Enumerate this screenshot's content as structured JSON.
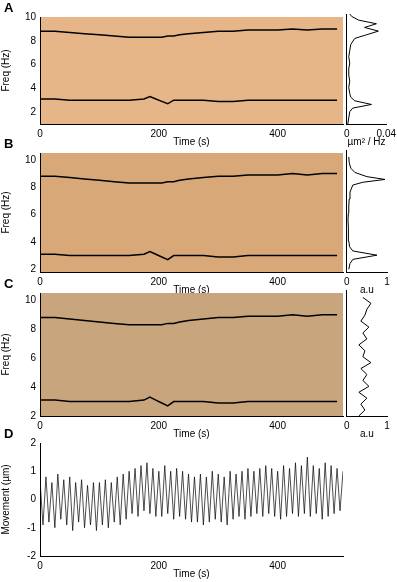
{
  "chart_data": [
    {
      "type": "line",
      "title": "A",
      "xlabel": "Time (s)",
      "ylabel": "Freq (Hz)",
      "x": [
        0,
        25,
        50,
        75,
        100,
        125,
        150,
        175,
        185,
        195,
        205,
        215,
        225,
        235,
        250,
        275,
        300,
        325,
        350,
        375,
        400,
        425,
        450,
        475,
        500
      ],
      "series": [
        {
          "color": "#000000",
          "values": [
            8.8,
            8.8,
            8.7,
            8.6,
            8.5,
            8.4,
            8.3,
            8.3,
            8.3,
            8.3,
            8.3,
            8.4,
            8.4,
            8.5,
            8.6,
            8.7,
            8.8,
            8.8,
            8.9,
            8.9,
            8.9,
            9.0,
            8.9,
            9.0,
            9.0
          ]
        },
        {
          "color": "#000000",
          "values": [
            3.1,
            3.1,
            3.0,
            3.0,
            3.0,
            3.0,
            3.0,
            3.1,
            3.3,
            3.1,
            2.9,
            2.7,
            3.0,
            3.0,
            3.0,
            3.0,
            2.9,
            2.9,
            3.0,
            3.0,
            3.0,
            3.0,
            3.0,
            3.0,
            3.0
          ]
        }
      ],
      "xlim": [
        0,
        510
      ],
      "xticks": [
        0,
        200,
        400
      ],
      "ylim": [
        1,
        10
      ],
      "yticks": [
        2,
        4,
        6,
        8,
        10
      ]
    },
    {
      "type": "line",
      "orientation": "horizontal",
      "xlabel": "µm² / Hz",
      "color": "#000000",
      "tick_labels": "x",
      "y": [
        1,
        1.5,
        2,
        2.3,
        2.6,
        2.9,
        3.2,
        3.5,
        4,
        4.5,
        5,
        5.5,
        6,
        6.5,
        7,
        7.5,
        8,
        8.3,
        8.6,
        8.9,
        9.2,
        9.5,
        9.8,
        10
      ],
      "values": [
        0.001,
        0.002,
        0.003,
        0.006,
        0.025,
        0.008,
        0.004,
        0.003,
        0.002,
        0.003,
        0.002,
        0.002,
        0.003,
        0.002,
        0.003,
        0.004,
        0.008,
        0.02,
        0.032,
        0.018,
        0.03,
        0.012,
        0.005,
        0.003
      ],
      "xlim": [
        0,
        0.04
      ],
      "xticks": [
        0,
        0.04
      ],
      "ylim": [
        1,
        10
      ]
    },
    {
      "type": "line",
      "title": "B",
      "xlabel": "Time (s)",
      "ylabel": "Freq (Hz)",
      "x": [
        0,
        25,
        50,
        75,
        100,
        125,
        150,
        175,
        185,
        195,
        205,
        215,
        225,
        235,
        250,
        275,
        300,
        325,
        350,
        375,
        400,
        425,
        450,
        475,
        500
      ],
      "series": [
        {
          "color": "#000000",
          "values": [
            8.8,
            8.8,
            8.7,
            8.6,
            8.5,
            8.4,
            8.3,
            8.3,
            8.3,
            8.3,
            8.3,
            8.4,
            8.4,
            8.5,
            8.6,
            8.7,
            8.8,
            8.8,
            8.9,
            8.9,
            8.9,
            9.0,
            8.9,
            9.0,
            9.0
          ]
        },
        {
          "color": "#000000",
          "values": [
            3.1,
            3.1,
            3.0,
            3.0,
            3.0,
            3.0,
            3.0,
            3.1,
            3.3,
            3.1,
            2.9,
            2.7,
            3.0,
            3.0,
            3.0,
            3.0,
            2.9,
            2.9,
            3.0,
            3.0,
            3.0,
            3.0,
            3.0,
            3.0,
            3.0
          ]
        }
      ],
      "xlim": [
        0,
        510
      ],
      "xticks": [
        0,
        200,
        400
      ],
      "ylim": [
        1.8,
        10.5
      ],
      "yticks": [
        2,
        4,
        6,
        8,
        10
      ]
    },
    {
      "type": "line",
      "orientation": "horizontal",
      "xlabel": "a.u",
      "color": "#000000",
      "tick_labels": "x",
      "y": [
        2,
        2.4,
        2.7,
        3.0,
        3.3,
        3.6,
        4,
        4.5,
        5,
        5.5,
        6,
        6.5,
        7,
        7.5,
        8,
        8.2,
        8.4,
        8.6,
        8.9,
        9.2,
        9.6,
        10
      ],
      "values": [
        0.05,
        0.08,
        0.15,
        0.75,
        0.15,
        0.07,
        0.05,
        0.04,
        0.04,
        0.03,
        0.04,
        0.05,
        0.06,
        0.08,
        0.15,
        0.4,
        0.95,
        0.5,
        0.2,
        0.1,
        0.06,
        0.05
      ],
      "xlim": [
        0,
        1
      ],
      "xticks": [
        0,
        1
      ],
      "ylim": [
        1.8,
        10.5
      ]
    },
    {
      "type": "line",
      "title": "C",
      "xlabel": "Time (s)",
      "ylabel": "Freq (Hz)",
      "x": [
        0,
        25,
        50,
        75,
        100,
        125,
        150,
        175,
        185,
        195,
        205,
        215,
        225,
        235,
        250,
        275,
        300,
        325,
        350,
        375,
        400,
        425,
        450,
        475,
        500
      ],
      "series": [
        {
          "color": "#000000",
          "values": [
            8.8,
            8.8,
            8.7,
            8.6,
            8.5,
            8.4,
            8.3,
            8.3,
            8.3,
            8.3,
            8.3,
            8.4,
            8.4,
            8.5,
            8.6,
            8.7,
            8.8,
            8.8,
            8.9,
            8.9,
            8.9,
            9.0,
            8.9,
            9.0,
            9.0
          ]
        },
        {
          "color": "#000000",
          "values": [
            3.1,
            3.1,
            3.0,
            3.0,
            3.0,
            3.0,
            3.0,
            3.1,
            3.3,
            3.1,
            2.9,
            2.7,
            3.0,
            3.0,
            3.0,
            3.0,
            2.9,
            2.9,
            3.0,
            3.0,
            3.0,
            3.0,
            3.0,
            3.0,
            3.0
          ]
        }
      ],
      "xlim": [
        0,
        510
      ],
      "xticks": [
        0,
        200,
        400
      ],
      "ylim": [
        2,
        10.5
      ],
      "yticks": [
        2,
        4,
        6,
        8,
        10
      ]
    },
    {
      "type": "line",
      "orientation": "horizontal",
      "xlabel": "a.u",
      "color": "#000000",
      "tick_labels": "x",
      "y": [
        2,
        2.4,
        2.8,
        3.2,
        3.6,
        4,
        4.4,
        4.8,
        5.2,
        5.6,
        6,
        6.4,
        6.8,
        7.2,
        7.6,
        8,
        8.4,
        8.8,
        9.2,
        9.6,
        10
      ],
      "values": [
        0.3,
        0.45,
        0.35,
        0.5,
        0.3,
        0.55,
        0.4,
        0.5,
        0.35,
        0.6,
        0.4,
        0.45,
        0.3,
        0.5,
        0.4,
        0.55,
        0.35,
        0.45,
        0.5,
        0.6,
        0.4
      ],
      "xlim": [
        0,
        1
      ],
      "xticks": [
        0,
        1
      ],
      "ylim": [
        2,
        10.5
      ]
    },
    {
      "type": "line",
      "title": "D",
      "xlabel": "Time (s)",
      "ylabel": "Movement (µm)",
      "x": [
        0,
        5,
        10,
        15,
        20,
        25,
        30,
        35,
        40,
        45,
        50,
        55,
        60,
        65,
        70,
        75,
        80,
        85,
        90,
        95,
        100,
        105,
        110,
        115,
        120,
        125,
        130,
        135,
        140,
        145,
        150,
        155,
        160,
        165,
        170,
        175,
        180,
        185,
        190,
        195,
        200,
        205,
        210,
        215,
        220,
        225,
        230,
        235,
        240,
        245,
        250,
        255,
        260,
        265,
        270,
        275,
        280,
        285,
        290,
        295,
        300,
        305,
        310,
        315,
        320,
        325,
        330,
        335,
        340,
        345,
        350,
        355,
        360,
        365,
        370,
        375,
        380,
        385,
        390,
        395,
        400,
        405,
        410,
        415,
        420,
        425,
        430,
        435,
        440,
        445,
        450,
        455,
        460,
        465,
        470,
        475,
        480,
        485,
        490,
        495,
        500,
        505,
        510
      ],
      "series": [
        {
          "color": "#000000",
          "values": [
            0.7,
            -0.9,
            0.8,
            -0.8,
            0.6,
            -1.0,
            0.9,
            -0.7,
            0.7,
            -0.9,
            0.8,
            -1.1,
            0.6,
            -0.8,
            0.7,
            -1.0,
            0.5,
            -0.9,
            0.6,
            -1.1,
            0.6,
            -0.9,
            0.7,
            -1.0,
            0.6,
            -0.8,
            0.8,
            -0.9,
            0.9,
            -0.7,
            1.0,
            -0.5,
            1.1,
            -0.6,
            1.2,
            -0.4,
            1.3,
            -0.5,
            1.1,
            -0.6,
            1.0,
            -0.6,
            1.2,
            -0.5,
            1.0,
            -0.7,
            1.1,
            -0.6,
            1.0,
            -0.7,
            0.9,
            -0.8,
            0.8,
            -0.8,
            0.9,
            -0.9,
            0.8,
            -0.8,
            1.0,
            -0.7,
            0.9,
            -0.8,
            0.8,
            -0.9,
            1.0,
            -0.7,
            0.9,
            -0.6,
            1.0,
            -0.7,
            1.1,
            -0.6,
            1.0,
            -0.5,
            1.1,
            -0.6,
            1.2,
            -0.5,
            1.1,
            -0.6,
            1.0,
            -0.7,
            1.2,
            -0.6,
            1.1,
            -0.5,
            1.3,
            -0.6,
            1.2,
            -0.5,
            1.5,
            -0.6,
            1.2,
            -0.5,
            1.1,
            -0.7,
            1.3,
            -0.6,
            1.2,
            -0.5,
            1.1,
            -0.4,
            1.0
          ]
        }
      ],
      "xlim": [
        0,
        510
      ],
      "xticks": [
        0,
        200,
        400
      ],
      "ylim": [
        -2,
        2
      ],
      "yticks": [
        -2,
        -1,
        0,
        1,
        2
      ]
    }
  ]
}
